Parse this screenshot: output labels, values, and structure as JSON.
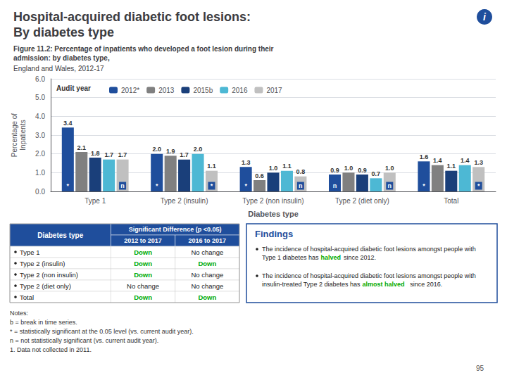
{
  "chart_data": {
    "type": "bar",
    "title": "Hospital-acquired diabetic foot lesions:\nBy diabetes type",
    "icon": {
      "text": "i",
      "color": "#1F4E9C"
    },
    "subtitle": "Figure 11.2: Percentage of inpatients who developed a foot lesion during their\nadmission: by diabetes type,",
    "subtitle_2": "England and Wales, 2012-17",
    "xlabel": "Diabetes type",
    "ylabel": "Percentage of\nInpatients",
    "categories": [
      "Type 1",
      "Type 2 (insulin)",
      "Type 2 (non insulin)",
      "Type 2 (diet only)",
      "Total"
    ],
    "series": [
      {
        "name": "2012*",
        "color": "#1F4E9C",
        "values": [
          3.4,
          2.0,
          1.3,
          0.9,
          1.6
        ],
        "value_labels": [
          "3.4",
          "2.0",
          "1.3",
          "0.9",
          "1.6"
        ]
      },
      {
        "name": "2013",
        "color": "#808080",
        "values": [
          2.1,
          1.9,
          0.6,
          1.0,
          1.4
        ],
        "value_labels": [
          "2.1",
          "1.9",
          "0.6",
          "1.0",
          "1.4"
        ]
      },
      {
        "name": "2015b",
        "color": "#1A3F7A",
        "values": [
          1.8,
          1.7,
          1.0,
          0.9,
          1.1
        ],
        "value_labels": [
          "1.8",
          "1.7",
          "1.0",
          "0.9",
          "1.1"
        ]
      },
      {
        "name": "2016",
        "color": "#4DB8D4",
        "values": [
          1.7,
          2.0,
          1.1,
          0.7,
          1.4
        ],
        "value_labels": [
          "1.7",
          "2.0",
          "1.1",
          "0.7",
          "1.4"
        ]
      },
      {
        "name": "2017",
        "color": "#C0C0C0",
        "values": [
          1.7,
          1.1,
          0.8,
          1.0,
          1.3
        ],
        "value_labels": [
          "1.7",
          "1.1",
          "0.8",
          "1.0",
          "1.3"
        ]
      }
    ],
    "data_labels": true,
    "ylim": [
      0,
      6
    ],
    "yticks": [
      {
        "value": 0,
        "label": "0.0"
      },
      {
        "value": 1,
        "label": "1.0"
      },
      {
        "value": 2,
        "label": "2.0"
      },
      {
        "value": 3,
        "label": "3.0"
      },
      {
        "value": 4,
        "label": "4.0"
      },
      {
        "value": 5,
        "label": "5.0"
      },
      {
        "value": 6,
        "label": "6.0"
      }
    ],
    "grid": true,
    "legend": "upper left",
    "legend_title": "Audit year",
    "significance": {
      "color": "#1F4E9C",
      "series": [
        {
          "name": "2012*",
          "labels": [
            "*",
            "*",
            "*",
            "n",
            "*"
          ]
        },
        {
          "name": "2017",
          "labels": [
            "n",
            "*",
            "n",
            "n",
            "*"
          ]
        }
      ]
    },
    "table": {
      "title": "Significant Difference (p <0.05)",
      "headers": [
        "Diabetes type",
        "2012 to 2017",
        "2016 to 2017"
      ],
      "color": "#1F4E9C",
      "rows": [
        [
          "Type 1",
          "Down",
          "No change"
        ],
        [
          "Type 2 (insulin)",
          "Down",
          "Down"
        ],
        [
          "Type 2 (non insulin)",
          "Down",
          "No change"
        ],
        [
          "Type 2 (diet only)",
          "No change",
          "No change"
        ],
        [
          "Total",
          "Down",
          "Down"
        ]
      ],
      "highlight": {
        "text": "Down",
        "color": "#00AA00"
      }
    },
    "findings": {
      "title": "Findings",
      "color": "#1F4E9C",
      "items": [
        [
          {
            "text": "The incidence of hospital-acquired diabetic foot lesions amongst people with Type 1 diabetes has "
          },
          {
            "text": "halved",
            "color": "#00AA00"
          },
          {
            "text": " since 2012."
          }
        ],
        [
          {
            "text": "The incidence of hospital-acquired diabetic foot lesions amongst people with insulin-treated Type 2 diabetes has "
          },
          {
            "text": "almost halved",
            "color": "#00AA00"
          },
          {
            "text": " since 2016."
          }
        ]
      ]
    },
    "notes": "Notes:\nb = break in time series.\n* = statistically significant at the 0.05 level (vs. current audit year).\nn = not statistically significant (vs. current audit year).\n1. Data not collected in 2011.",
    "page_number": "95"
  }
}
